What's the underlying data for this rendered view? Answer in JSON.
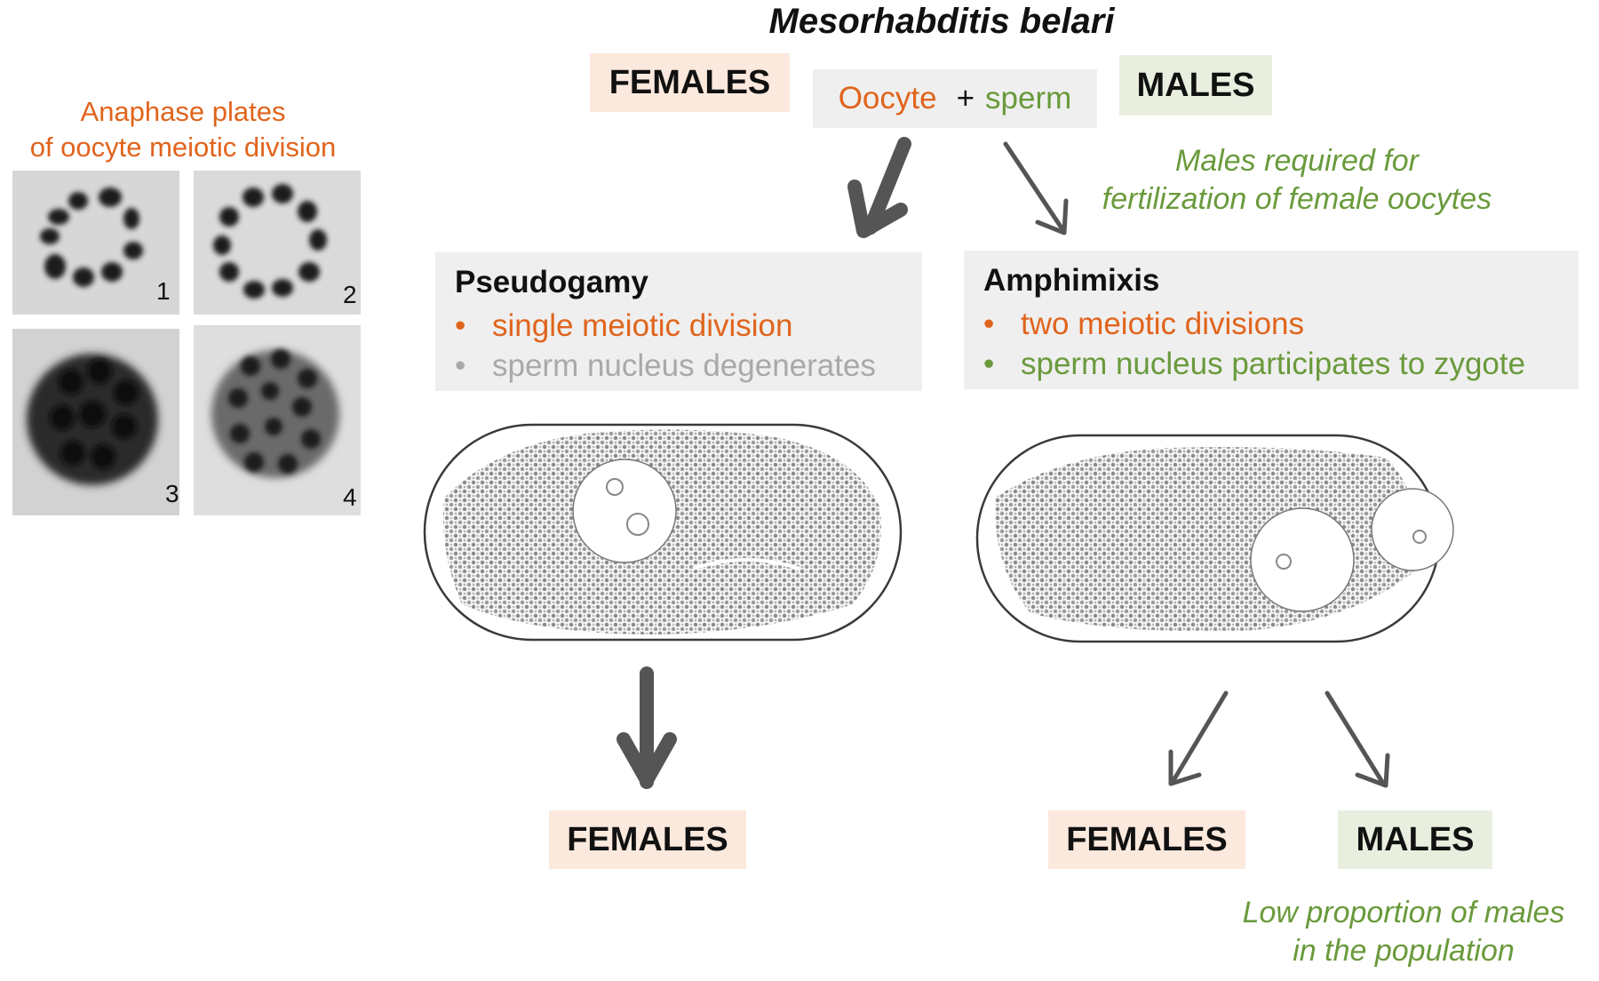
{
  "title": "Mesorhabditis belari",
  "panel_caption": {
    "line1": "Anaphase plates",
    "line2": "of oocyte meiotic division"
  },
  "micrographs": [
    {
      "number": "1"
    },
    {
      "number": "2"
    },
    {
      "number": "3"
    },
    {
      "number": "4"
    }
  ],
  "top": {
    "females": "FEMALES",
    "males": "MALES",
    "oocyte": "Oocyte",
    "plus": "+",
    "sperm": "sperm",
    "note_line1": "Males required for",
    "note_line2": "fertilization of female oocytes"
  },
  "pseudogamy": {
    "title": "Pseudogamy",
    "bullet1": "single meiotic division",
    "bullet2": "sperm nucleus degenerates"
  },
  "amphimixis": {
    "title": "Amphimixis",
    "bullet1": "two meiotic divisions",
    "bullet2": "sperm nucleus participates to zygote"
  },
  "bottom": {
    "females_left": "FEMALES",
    "females_right": "FEMALES",
    "males_right": "MALES",
    "note_line1": "Low proportion of males",
    "note_line2": "in the population"
  },
  "colors": {
    "orange": "#e0641c",
    "green": "#6a9a3c",
    "gray_text": "#a9a9a9",
    "arrow": "#555555",
    "female_bg": "#fce9dd",
    "male_bg": "#e8efdf",
    "box_bg": "#efefef"
  }
}
